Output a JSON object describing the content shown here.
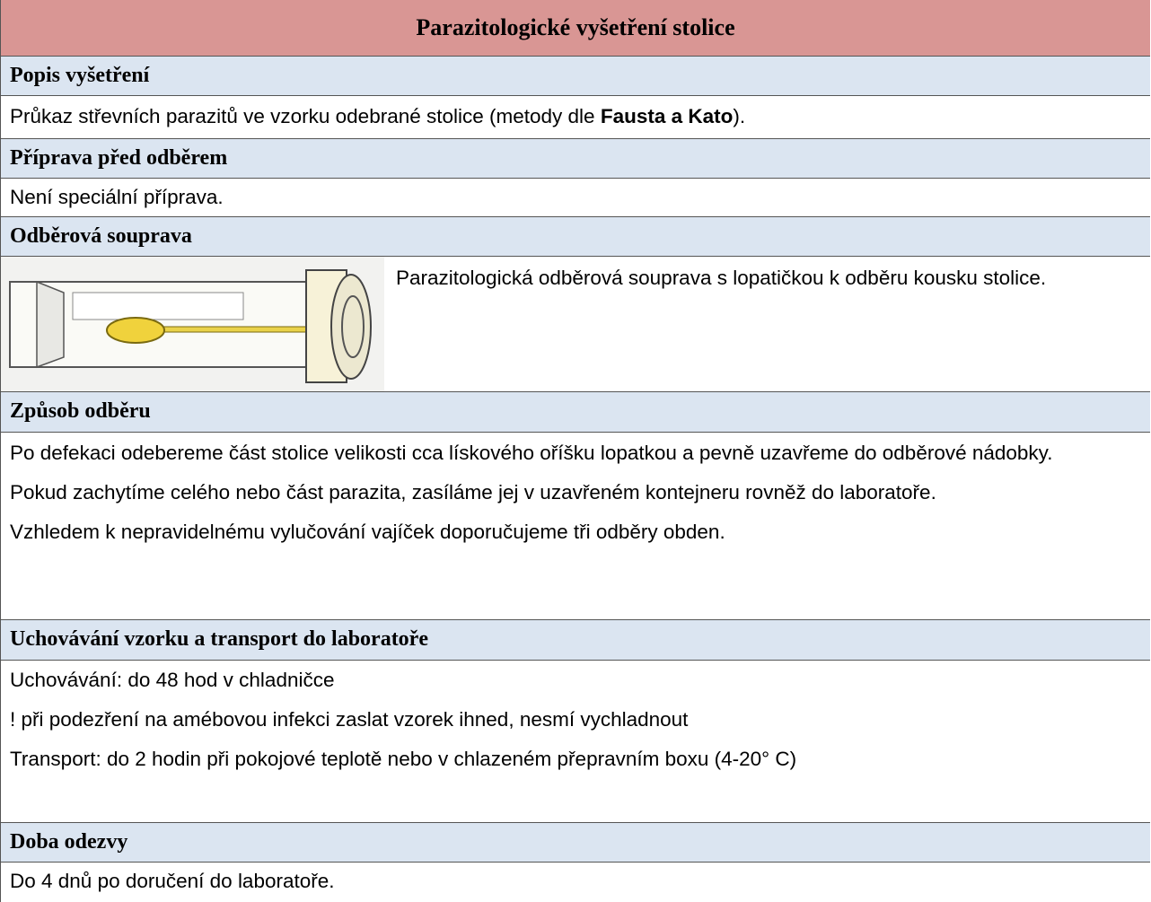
{
  "title": "Parazitologické vyšetření stolice",
  "sections": [
    {
      "heading": "Popis vyšetření",
      "paragraphs": [
        {
          "parts": [
            "Průkaz střevních parazitů ve vzorku odebrané stolice (metody dle ",
            "Fausta a Kato",
            ")."
          ]
        }
      ]
    },
    {
      "heading": "Příprava před odběrem",
      "paragraphs": [
        "Není speciální příprava."
      ]
    },
    {
      "heading": "Odběrová souprava",
      "paragraphs": [
        "Parazitologická odběrová souprava s lopatičkou k odběru kousku stolice."
      ]
    },
    {
      "heading": "Způsob odběru",
      "paragraphs": [
        "Po defekaci odebereme část stolice velikosti cca lískového oříšku lopatkou a pevně uzavřeme do odběrové nádobky.",
        "Pokud zachytíme celého nebo část parazita, zasíláme jej v uzavřeném kontejneru rovněž do laboratoře.",
        "Vzhledem k nepravidelnému vylučování vajíček doporučujeme tři odběry obden."
      ]
    },
    {
      "heading": "Uchovávání vzorku a transport do laboratoře",
      "paragraphs": [
        "Uchovávání: do 48 hod v chladničce",
        "! při podezření na amébovou infekci zaslat vzorek ihned, nesmí vychladnout",
        "Transport: do 2 hodin při pokojové teplotě nebo v chlazeném přepravním boxu (4-20° C)"
      ]
    },
    {
      "heading": "Doba odezvy",
      "paragraphs": [
        "Do 4 dnů po doručení do laboratoře."
      ]
    }
  ]
}
